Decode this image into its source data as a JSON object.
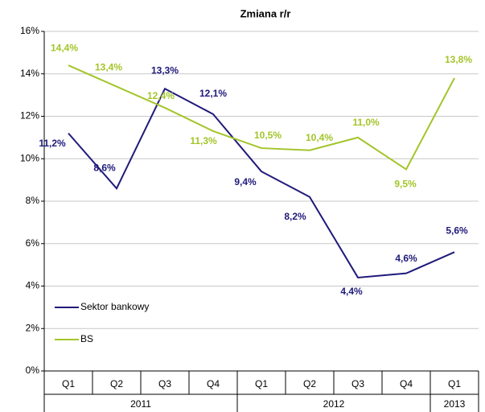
{
  "chart_data": {
    "type": "line",
    "title": "Zmiana r/r",
    "categories": [
      "Q1",
      "Q2",
      "Q3",
      "Q4",
      "Q1",
      "Q2",
      "Q3",
      "Q4",
      "Q1"
    ],
    "category_groups": [
      {
        "label": "2011",
        "span": 4
      },
      {
        "label": "2012",
        "span": 4
      },
      {
        "label": "2013",
        "span": 1
      }
    ],
    "series": [
      {
        "name": "Sektor bankowy",
        "color": "#1f1a7a",
        "values": [
          11.2,
          8.6,
          13.3,
          12.1,
          9.4,
          8.2,
          4.4,
          4.6,
          5.6
        ],
        "value_labels": [
          "11,2%",
          "8,6%",
          "13,3%",
          "12,1%",
          "9,4%",
          "8,2%",
          "4,4%",
          "4,6%",
          "5,6%"
        ]
      },
      {
        "name": "BS",
        "color": "#a3c52a",
        "values": [
          14.4,
          13.4,
          12.4,
          11.3,
          10.5,
          10.4,
          11.0,
          9.5,
          13.8
        ],
        "value_labels": [
          "14,4%",
          "13,4%",
          "12,4%",
          "11,3%",
          "10,5%",
          "10,4%",
          "11,0%",
          "9,5%",
          "13,8%"
        ]
      }
    ],
    "ylim": [
      0,
      16
    ],
    "yticks": [
      {
        "value": 0,
        "label": "0%"
      },
      {
        "value": 2,
        "label": "2%"
      },
      {
        "value": 4,
        "label": "4%"
      },
      {
        "value": 6,
        "label": "6%"
      },
      {
        "value": 8,
        "label": "8%"
      },
      {
        "value": 10,
        "label": "10%"
      },
      {
        "value": 12,
        "label": "12%"
      },
      {
        "value": 14,
        "label": "14%"
      },
      {
        "value": 16,
        "label": "16%"
      }
    ],
    "grid": true,
    "legend": "lower left"
  }
}
